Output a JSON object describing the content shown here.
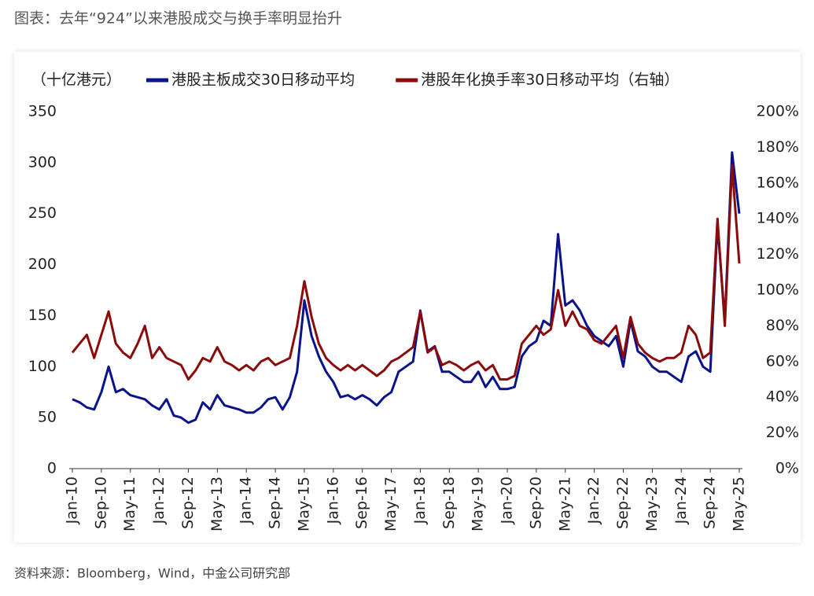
{
  "chart_data": {
    "type": "line",
    "title": "图表：去年“924”以来港股成交与换手率明显抬升",
    "y_axis_label": "（十亿港元）",
    "source": "资料来源：Bloomberg，Wind，中金公司研究部",
    "categories": [
      "Jan-10",
      null,
      null,
      null,
      "Sep-10",
      null,
      null,
      null,
      "May-11",
      null,
      null,
      null,
      "Jan-12",
      null,
      null,
      null,
      "Sep-12",
      null,
      null,
      null,
      "May-13",
      null,
      null,
      null,
      "Jan-14",
      null,
      null,
      null,
      "Sep-14",
      null,
      null,
      null,
      "May-15",
      null,
      null,
      null,
      "Jan-16",
      null,
      null,
      null,
      "Sep-16",
      null,
      null,
      null,
      "May-17",
      null,
      null,
      null,
      "Jan-18",
      null,
      null,
      null,
      "Sep-18",
      null,
      null,
      null,
      "May-19",
      null,
      null,
      null,
      "Jan-20",
      null,
      null,
      null,
      "Sep-20",
      null,
      null,
      null,
      "May-21",
      null,
      null,
      null,
      "Jan-22",
      null,
      null,
      null,
      "Sep-22",
      null,
      null,
      null,
      "May-23",
      null,
      null,
      null,
      "Jan-24",
      null,
      null,
      null,
      "Sep-24",
      null,
      null,
      null,
      "May-25"
    ],
    "series": [
      {
        "name": "港股主板成交30日移动平均",
        "color": "#0a128c",
        "values": [
          68,
          65,
          60,
          58,
          75,
          100,
          75,
          78,
          72,
          70,
          68,
          62,
          58,
          68,
          52,
          50,
          45,
          48,
          65,
          58,
          72,
          62,
          60,
          58,
          55,
          55,
          60,
          68,
          70,
          58,
          70,
          95,
          165,
          130,
          110,
          95,
          85,
          70,
          72,
          68,
          72,
          68,
          62,
          70,
          75,
          95,
          100,
          105,
          155,
          115,
          120,
          95,
          95,
          90,
          85,
          85,
          95,
          80,
          90,
          78,
          78,
          80,
          110,
          120,
          125,
          145,
          140,
          230,
          160,
          165,
          155,
          140,
          130,
          125,
          120,
          130,
          100,
          145,
          115,
          110,
          100,
          95,
          95,
          90,
          85,
          110,
          115,
          100,
          95,
          240,
          145,
          310,
          250
        ]
      },
      {
        "name": "港股年化换手率30日移动平均（右轴）",
        "color": "#8b0a0a",
        "axis": "y2",
        "values": [
          65,
          70,
          75,
          62,
          75,
          88,
          70,
          65,
          62,
          70,
          80,
          62,
          68,
          62,
          60,
          58,
          50,
          55,
          62,
          60,
          68,
          60,
          58,
          55,
          58,
          55,
          60,
          62,
          58,
          60,
          62,
          80,
          105,
          85,
          70,
          62,
          58,
          55,
          58,
          55,
          58,
          55,
          52,
          55,
          60,
          62,
          65,
          68,
          88,
          65,
          68,
          58,
          60,
          58,
          55,
          58,
          60,
          55,
          58,
          50,
          50,
          52,
          70,
          75,
          80,
          75,
          78,
          100,
          80,
          88,
          80,
          78,
          72,
          70,
          75,
          80,
          62,
          85,
          70,
          65,
          62,
          60,
          62,
          62,
          65,
          80,
          75,
          62,
          65,
          140,
          80,
          170,
          115
        ]
      }
    ],
    "ylim": [
      0,
      350
    ],
    "yticks": [
      0,
      50,
      100,
      150,
      200,
      250,
      300,
      350
    ],
    "y2lim": [
      0,
      200
    ],
    "y2ticks": [
      {
        "value": 0,
        "label": "0%"
      },
      {
        "value": 20,
        "label": "20%"
      },
      {
        "value": 40,
        "label": "40%"
      },
      {
        "value": 60,
        "label": "60%"
      },
      {
        "value": 80,
        "label": "80%"
      },
      {
        "value": 100,
        "label": "100%"
      },
      {
        "value": 120,
        "label": "120%"
      },
      {
        "value": 140,
        "label": "140%"
      },
      {
        "value": 160,
        "label": "160%"
      },
      {
        "value": 180,
        "label": "180%"
      },
      {
        "value": 200,
        "label": "200%"
      }
    ],
    "grid": false
  }
}
